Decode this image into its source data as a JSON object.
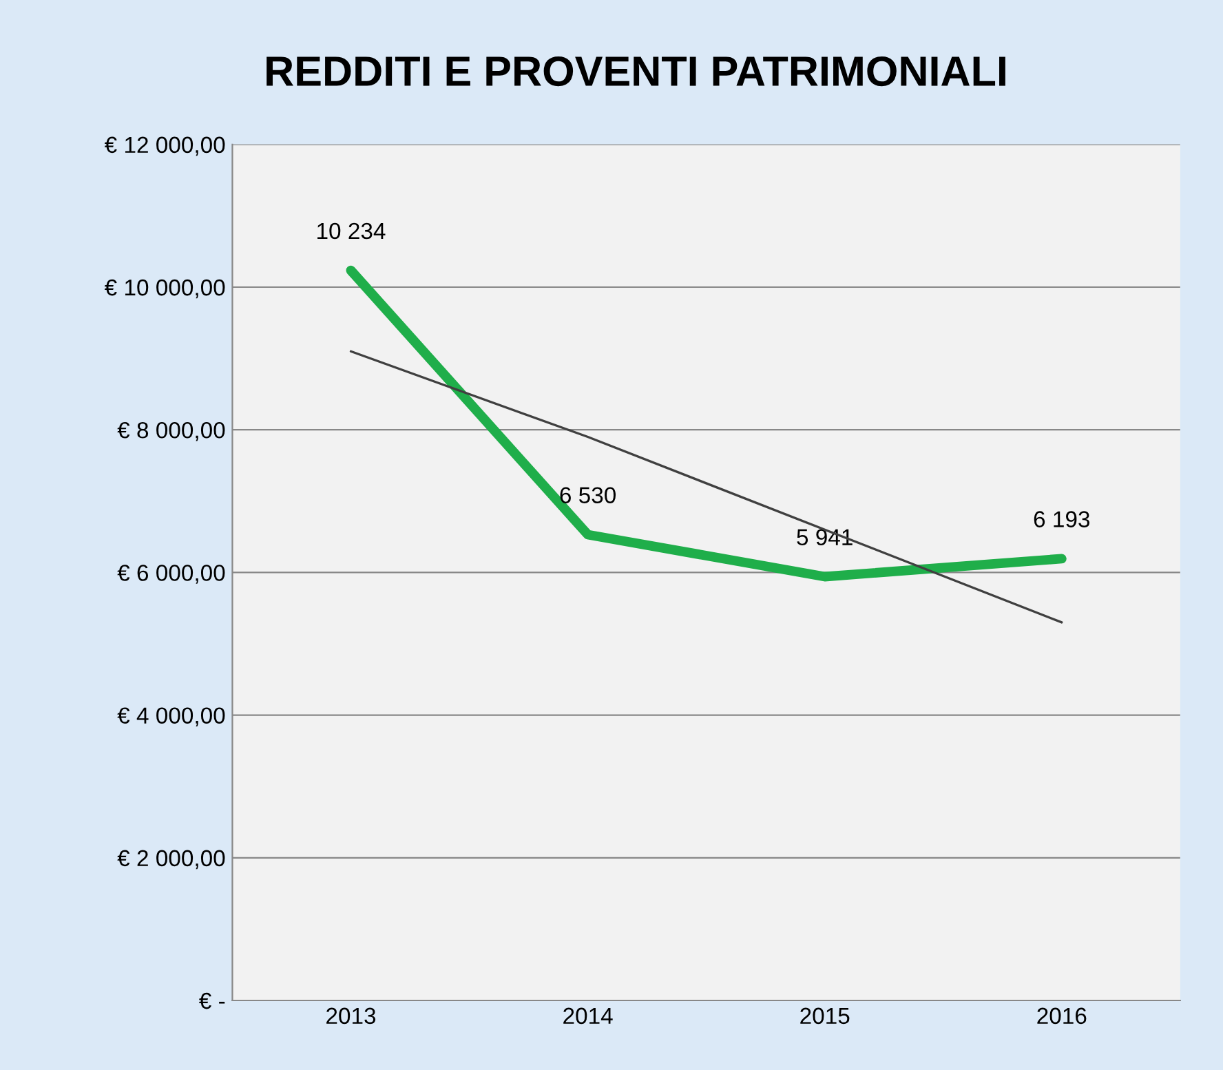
{
  "chart_data": {
    "type": "line",
    "title": "REDDITI E PROVENTI PATRIMONIALI",
    "categories": [
      "2013",
      "2014",
      "2015",
      "2016"
    ],
    "series": [
      {
        "color": "#1fae4a",
        "values": [
          10234,
          6530,
          5941,
          6193
        ],
        "value_labels": [
          "10 234",
          "6 530",
          "5 941",
          "6 193"
        ]
      },
      {
        "color": "#404040",
        "values": [
          9100,
          7900,
          6600,
          5300
        ]
      }
    ],
    "ylim": [
      0,
      12000
    ],
    "yticks": [
      {
        "value": 0,
        "label": "€ -"
      },
      {
        "value": 2000,
        "label": "€ 2 000,00"
      },
      {
        "value": 4000,
        "label": "€ 4 000,00"
      },
      {
        "value": 6000,
        "label": "€ 6 000,00"
      },
      {
        "value": 8000,
        "label": "€ 8 000,00"
      },
      {
        "value": 10000,
        "label": "€ 10 000,00"
      },
      {
        "value": 12000,
        "label": "€ 12 000,00"
      }
    ],
    "grid": "y",
    "legend": false,
    "marker": "none",
    "line_style": "solid"
  }
}
